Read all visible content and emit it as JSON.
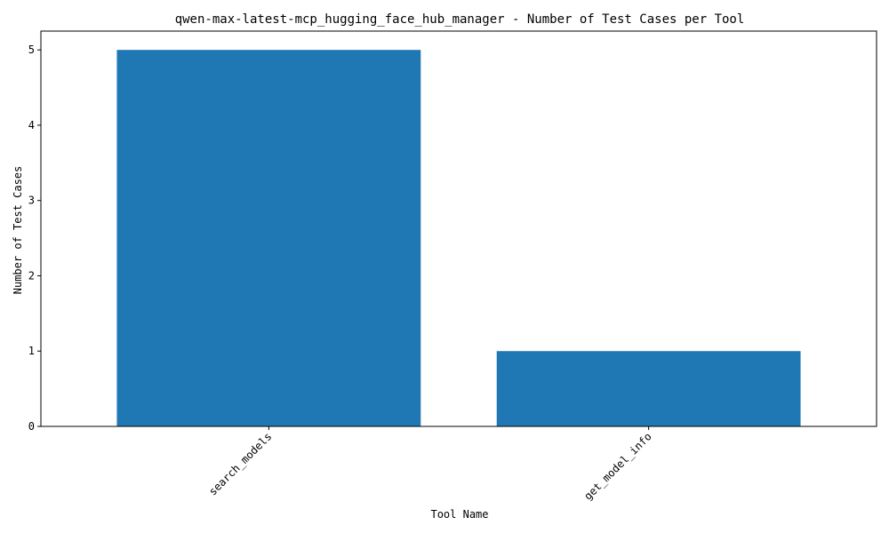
{
  "chart_data": {
    "type": "bar",
    "title": "qwen-max-latest-mcp_hugging_face_hub_manager - Number of Test Cases per Tool",
    "xlabel": "Tool Name",
    "ylabel": "Number of Test Cases",
    "categories": [
      "search_models",
      "get_model_info"
    ],
    "values": [
      5,
      1
    ],
    "ylim": [
      0,
      5.25
    ],
    "yticks": [
      "0",
      "1",
      "2",
      "3",
      "4",
      "5"
    ],
    "grid": false,
    "legend": "none",
    "bar_color": "#1f77b4"
  }
}
